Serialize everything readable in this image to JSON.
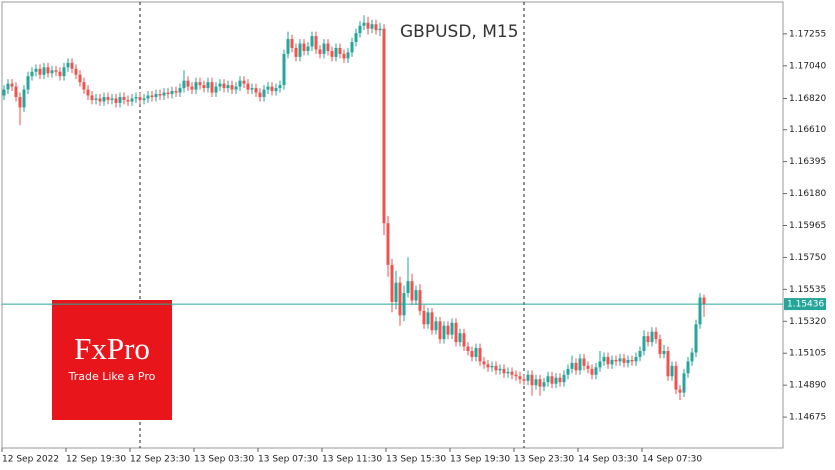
{
  "chart_data": {
    "type": "candlestick",
    "title": "GBPUSD, M15",
    "categories": [
      "12 Sep 2022",
      null,
      null,
      null,
      null,
      null,
      null,
      null,
      null,
      null,
      null,
      null,
      null,
      null,
      null,
      null,
      "12 Sep 19:30",
      null,
      null,
      null,
      null,
      null,
      null,
      null,
      null,
      null,
      null,
      null,
      null,
      null,
      null,
      null,
      "12 Sep 23:30",
      null,
      null,
      null,
      null,
      null,
      null,
      null,
      null,
      null,
      null,
      null,
      null,
      null,
      null,
      null,
      "13 Sep 03:30",
      null,
      null,
      null,
      null,
      null,
      null,
      null,
      null,
      null,
      null,
      null,
      null,
      null,
      null,
      null,
      "13 Sep 07:30",
      null,
      null,
      null,
      null,
      null,
      null,
      null,
      null,
      null,
      null,
      null,
      null,
      null,
      null,
      null,
      "13 Sep 11:30",
      null,
      null,
      null,
      null,
      null,
      null,
      null,
      null,
      null,
      null,
      null,
      null,
      null,
      null,
      null,
      "13 Sep 15:30",
      null,
      null,
      null,
      null,
      null,
      null,
      null,
      null,
      null,
      null,
      null,
      null,
      null,
      null,
      null,
      "13 Sep 19:30",
      null,
      null,
      null,
      null,
      null,
      null,
      null,
      null,
      null,
      null,
      null,
      null,
      null,
      null,
      null,
      "13 Sep 23:30",
      null,
      null,
      null,
      null,
      null,
      null,
      null,
      null,
      null,
      null,
      null,
      null,
      null,
      null,
      null,
      "14 Sep 03:30",
      null,
      null,
      null,
      null,
      null,
      null,
      null,
      null,
      null,
      null,
      null,
      null,
      null,
      null,
      null,
      "14 Sep 07:30",
      null,
      null,
      null,
      null,
      null,
      null,
      null,
      null,
      null,
      null,
      null,
      null,
      null,
      null,
      null
    ],
    "open": [
      1.1684,
      1.1688,
      1.1692,
      1.169,
      1.1683,
      1.1676,
      1.1688,
      1.1697,
      1.17,
      1.1702,
      1.1698,
      1.1703,
      1.1699,
      1.1701,
      1.17,
      1.1697,
      1.1703,
      1.1706,
      1.1702,
      1.1698,
      1.1693,
      1.1688,
      1.1684,
      1.1681,
      1.1682,
      1.168,
      1.1683,
      1.1681,
      1.1682,
      1.1679,
      1.1683,
      1.1681,
      1.168,
      1.1682,
      1.1683,
      1.1681,
      1.1682,
      1.1684,
      1.1683,
      1.1685,
      1.1684,
      1.1686,
      1.1685,
      1.1687,
      1.1686,
      1.1689,
      1.1694,
      1.169,
      1.1688,
      1.1693,
      1.1691,
      1.1689,
      1.1693,
      1.1686,
      1.169,
      1.1692,
      1.1689,
      1.1691,
      1.1688,
      1.169,
      1.1694,
      1.1692,
      1.1688,
      1.1689,
      1.1686,
      1.1683,
      1.1688,
      1.169,
      1.1687,
      1.1689,
      1.1691,
      1.1712,
      1.1722,
      1.1716,
      1.171,
      1.1719,
      1.1714,
      1.1717,
      1.1724,
      1.1715,
      1.1712,
      1.1719,
      1.1714,
      1.171,
      1.1716,
      1.1712,
      1.1709,
      1.1713,
      1.172,
      1.1726,
      1.1731,
      1.1733,
      1.1729,
      1.1732,
      1.1728,
      1.1729,
      1.1598,
      1.157,
      1.1545,
      1.1558,
      1.1536,
      1.1551,
      1.1559,
      1.1546,
      1.1553,
      1.1539,
      1.153,
      1.1538,
      1.1526,
      1.1532,
      1.152,
      1.1529,
      1.1523,
      1.1531,
      1.1518,
      1.1524,
      1.1515,
      1.1512,
      1.1508,
      1.1514,
      1.1505,
      1.1503,
      1.1501,
      1.1502,
      1.1499,
      1.15,
      1.1497,
      1.1498,
      1.1496,
      1.1495,
      1.1493,
      1.1492,
      1.1496,
      1.1489,
      1.1493,
      1.1488,
      1.1491,
      1.1495,
      1.149,
      1.1494,
      1.1491,
      1.1496,
      1.15,
      1.1504,
      1.1499,
      1.1507,
      1.1502,
      1.15,
      1.1496,
      1.1501,
      1.1505,
      1.1508,
      1.1503,
      1.1506,
      1.1505,
      1.1507,
      1.1504,
      1.1506,
      1.1505,
      1.1508,
      1.1512,
      1.1522,
      1.1518,
      1.1525,
      1.152,
      1.151,
      1.1512,
      1.1495,
      1.1502,
      1.1486,
      1.1484,
      1.1497,
      1.1505,
      1.1511,
      1.153,
      1.1548
    ],
    "high": [
      1.1691,
      1.1695,
      1.1695,
      1.1693,
      1.1686,
      1.1691,
      1.17,
      1.1703,
      1.1705,
      1.1705,
      1.1706,
      1.1706,
      1.1704,
      1.1704,
      1.1703,
      1.1706,
      1.1709,
      1.1709,
      1.1705,
      1.1701,
      1.1696,
      1.1691,
      1.1687,
      1.1685,
      1.1685,
      1.1686,
      1.1686,
      1.1685,
      1.1685,
      1.1686,
      1.1686,
      1.1684,
      1.1685,
      1.1686,
      1.1686,
      1.1685,
      1.1687,
      1.1687,
      1.1688,
      1.1688,
      1.1689,
      1.1689,
      1.169,
      1.169,
      1.1692,
      1.1701,
      1.1697,
      1.1693,
      1.1696,
      1.1696,
      1.1694,
      1.1696,
      1.1696,
      1.1693,
      1.1695,
      1.1695,
      1.1694,
      1.1694,
      1.1693,
      1.1697,
      1.1697,
      1.1695,
      1.1692,
      1.1692,
      1.1689,
      1.1691,
      1.1693,
      1.1693,
      1.1692,
      1.1694,
      1.1715,
      1.1727,
      1.1725,
      1.1719,
      1.1722,
      1.1722,
      1.172,
      1.1727,
      1.1727,
      1.1718,
      1.1722,
      1.1722,
      1.1717,
      1.1719,
      1.1719,
      1.1715,
      1.1716,
      1.1723,
      1.1729,
      1.1734,
      1.1738,
      1.1737,
      1.1735,
      1.1735,
      1.1733,
      1.1732,
      1.1603,
      1.1574,
      1.1566,
      1.1562,
      1.1556,
      1.1575,
      1.1564,
      1.1556,
      1.1557,
      1.1543,
      1.1541,
      1.1541,
      1.1535,
      1.1535,
      1.1532,
      1.1532,
      1.1534,
      1.1534,
      1.1527,
      1.1527,
      1.1518,
      1.1515,
      1.1517,
      1.1517,
      1.1508,
      1.1506,
      1.1505,
      1.1505,
      1.1503,
      1.1503,
      1.1501,
      1.1501,
      1.1499,
      1.1498,
      1.1496,
      1.1499,
      1.1499,
      1.1496,
      1.1496,
      1.1494,
      1.1498,
      1.1498,
      1.1497,
      1.1497,
      1.1499,
      1.1503,
      1.1509,
      1.1507,
      1.151,
      1.151,
      1.1505,
      1.1503,
      1.1504,
      1.1512,
      1.1511,
      1.1511,
      1.1509,
      1.1509,
      1.151,
      1.151,
      1.1509,
      1.1509,
      1.1511,
      1.1515,
      1.1526,
      1.1525,
      1.1528,
      1.1528,
      1.1523,
      1.1516,
      1.1515,
      1.1505,
      1.1505,
      1.1489,
      1.15,
      1.1508,
      1.1514,
      1.1533,
      1.1551,
      1.155
    ],
    "low": [
      1.1681,
      1.1685,
      1.1687,
      1.168,
      1.1664,
      1.1673,
      1.1685,
      1.1694,
      1.1697,
      1.1695,
      1.1695,
      1.1696,
      1.1696,
      1.1697,
      1.1694,
      1.1694,
      1.17,
      1.1699,
      1.1695,
      1.169,
      1.1685,
      1.1681,
      1.1678,
      1.1678,
      1.1677,
      1.1677,
      1.1678,
      1.1678,
      1.1676,
      1.1676,
      1.1678,
      1.1677,
      1.1677,
      1.1679,
      1.1678,
      1.1678,
      1.1679,
      1.168,
      1.168,
      1.1681,
      1.1681,
      1.1682,
      1.1682,
      1.1683,
      1.1683,
      1.1686,
      1.1687,
      1.1685,
      1.1685,
      1.1688,
      1.1686,
      1.1686,
      1.1683,
      1.1683,
      1.1687,
      1.1686,
      1.1686,
      1.1685,
      1.1685,
      1.1687,
      1.1689,
      1.1685,
      1.1685,
      1.1683,
      1.168,
      1.168,
      1.1685,
      1.1684,
      1.1684,
      1.1686,
      1.1688,
      1.1709,
      1.1713,
      1.1707,
      1.1707,
      1.1711,
      1.1711,
      1.1714,
      1.1712,
      1.1709,
      1.1709,
      1.1711,
      1.1707,
      1.1707,
      1.1709,
      1.1706,
      1.1706,
      1.171,
      1.1717,
      1.1723,
      1.1728,
      1.1725,
      1.1726,
      1.1725,
      1.1724,
      1.159,
      1.1562,
      1.1538,
      1.154,
      1.1529,
      1.1532,
      1.1548,
      1.1543,
      1.1543,
      1.1536,
      1.1527,
      1.1527,
      1.1523,
      1.1523,
      1.1517,
      1.1517,
      1.152,
      1.152,
      1.1515,
      1.1515,
      1.1512,
      1.1509,
      1.1505,
      1.1505,
      1.1502,
      1.15,
      1.1498,
      1.1498,
      1.1496,
      1.1496,
      1.1494,
      1.1494,
      1.1493,
      1.1492,
      1.149,
      1.1489,
      1.1489,
      1.1482,
      1.1486,
      1.1482,
      1.1485,
      1.1488,
      1.1487,
      1.1487,
      1.1488,
      1.1488,
      1.1493,
      1.1497,
      1.1496,
      1.1496,
      1.1499,
      1.1497,
      1.1493,
      1.1493,
      1.1498,
      1.1502,
      1.15,
      1.15,
      1.1502,
      1.1502,
      1.1501,
      1.1501,
      1.1502,
      1.1502,
      1.1505,
      1.1509,
      1.1515,
      1.1515,
      1.1517,
      1.1507,
      1.1507,
      1.1492,
      1.1492,
      1.1483,
      1.1479,
      1.1481,
      1.1494,
      1.1502,
      1.1508,
      1.1527,
      1.1535
    ],
    "close": [
      1.1688,
      1.1692,
      1.169,
      1.1683,
      1.1676,
      1.1688,
      1.1697,
      1.17,
      1.1702,
      1.1698,
      1.1703,
      1.1699,
      1.1701,
      1.17,
      1.1697,
      1.1703,
      1.1706,
      1.1702,
      1.1698,
      1.1693,
      1.1688,
      1.1684,
      1.1681,
      1.1682,
      1.168,
      1.1683,
      1.1681,
      1.1682,
      1.1679,
      1.1683,
      1.1681,
      1.168,
      1.1682,
      1.1683,
      1.1681,
      1.1682,
      1.1684,
      1.1683,
      1.1685,
      1.1684,
      1.1686,
      1.1685,
      1.1687,
      1.1686,
      1.1689,
      1.1694,
      1.169,
      1.1688,
      1.1693,
      1.1691,
      1.1689,
      1.1693,
      1.1686,
      1.169,
      1.1692,
      1.1689,
      1.1691,
      1.1688,
      1.169,
      1.1694,
      1.1692,
      1.1688,
      1.1689,
      1.1686,
      1.1683,
      1.1688,
      1.169,
      1.1687,
      1.1689,
      1.1691,
      1.1712,
      1.1722,
      1.1716,
      1.171,
      1.1719,
      1.1714,
      1.1717,
      1.1724,
      1.1715,
      1.1712,
      1.1719,
      1.1714,
      1.171,
      1.1716,
      1.1712,
      1.1709,
      1.1713,
      1.172,
      1.1726,
      1.1731,
      1.1733,
      1.1729,
      1.1732,
      1.1728,
      1.1729,
      1.1598,
      1.157,
      1.1545,
      1.1558,
      1.1536,
      1.1551,
      1.1559,
      1.1546,
      1.1553,
      1.1539,
      1.153,
      1.1538,
      1.1526,
      1.1532,
      1.152,
      1.1529,
      1.1523,
      1.1531,
      1.1518,
      1.1524,
      1.1515,
      1.1512,
      1.1508,
      1.1514,
      1.1505,
      1.1503,
      1.1501,
      1.1502,
      1.1499,
      1.15,
      1.1497,
      1.1498,
      1.1496,
      1.1495,
      1.1493,
      1.1492,
      1.1496,
      1.1489,
      1.1493,
      1.1488,
      1.1491,
      1.1495,
      1.149,
      1.1494,
      1.1491,
      1.1496,
      1.15,
      1.1504,
      1.1499,
      1.1507,
      1.1502,
      1.15,
      1.1496,
      1.1501,
      1.1505,
      1.1508,
      1.1503,
      1.1506,
      1.1505,
      1.1507,
      1.1504,
      1.1506,
      1.1505,
      1.1508,
      1.1512,
      1.1522,
      1.1518,
      1.1525,
      1.152,
      1.151,
      1.1512,
      1.1495,
      1.1502,
      1.1486,
      1.1484,
      1.1497,
      1.1505,
      1.1511,
      1.153,
      1.1548,
      1.15436
    ],
    "up_color": "#26a69a",
    "down_color": "#ef5350",
    "ylim": [
      1.14467,
      1.17483
    ],
    "yticks": [
      1.17255,
      {
        "value": 1.1704,
        "label": "1.17040"
      },
      {
        "value": 1.1682,
        "label": "1.16820"
      },
      {
        "value": 1.1661,
        "label": "1.16610"
      },
      1.16395,
      {
        "value": 1.1618,
        "label": "1.16180"
      },
      1.15965,
      {
        "value": 1.1575,
        "label": "1.15750"
      },
      1.15535,
      {
        "value": 1.1532,
        "label": "1.15320"
      },
      1.15105,
      {
        "value": 1.1489,
        "label": "1.14890"
      },
      1.14675
    ],
    "last_price": 1.15436,
    "last_price_color": "#26a69a"
  },
  "logo": {
    "brand": "FxPro",
    "tagline": "Trade Like a Pro"
  }
}
